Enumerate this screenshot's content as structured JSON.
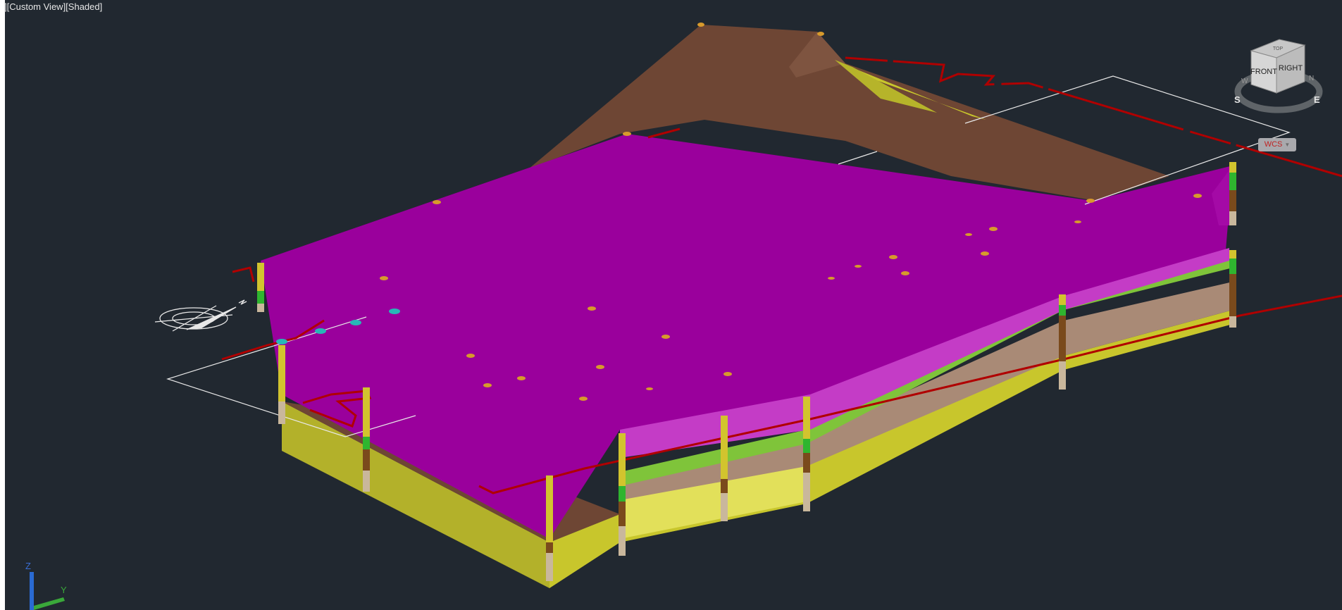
{
  "viewport": {
    "label": "][Custom View][Shaded]",
    "background": "#212830"
  },
  "viewcube": {
    "faces": {
      "front": "FRONT",
      "right": "RIGHT",
      "top": "TOP"
    },
    "compass": {
      "south": "S",
      "east": "E",
      "west": "W",
      "north": "N"
    },
    "ucs_menu": "WCS"
  },
  "ucs_icon": {
    "z": "Z",
    "y": "Y"
  },
  "model": {
    "description_icons": [
      "north-arrow-icon"
    ],
    "colors": {
      "top_surface": "#9a009c",
      "top_surface_light": "#c43cc6",
      "brown_layer": "#6e4634",
      "tan_layer": "#a98a76",
      "yellow_layer": "#c8c62c",
      "yellow_bright": "#e2e05a",
      "green_layer": "#7fc43a",
      "red_line": "#b00000",
      "bore_yellow": "#d2c42e",
      "bore_green": "#2fb52f",
      "bore_brown": "#7a4a1c",
      "bore_tan": "#c9b79c",
      "cyan_marker": "#27b7b7"
    }
  }
}
